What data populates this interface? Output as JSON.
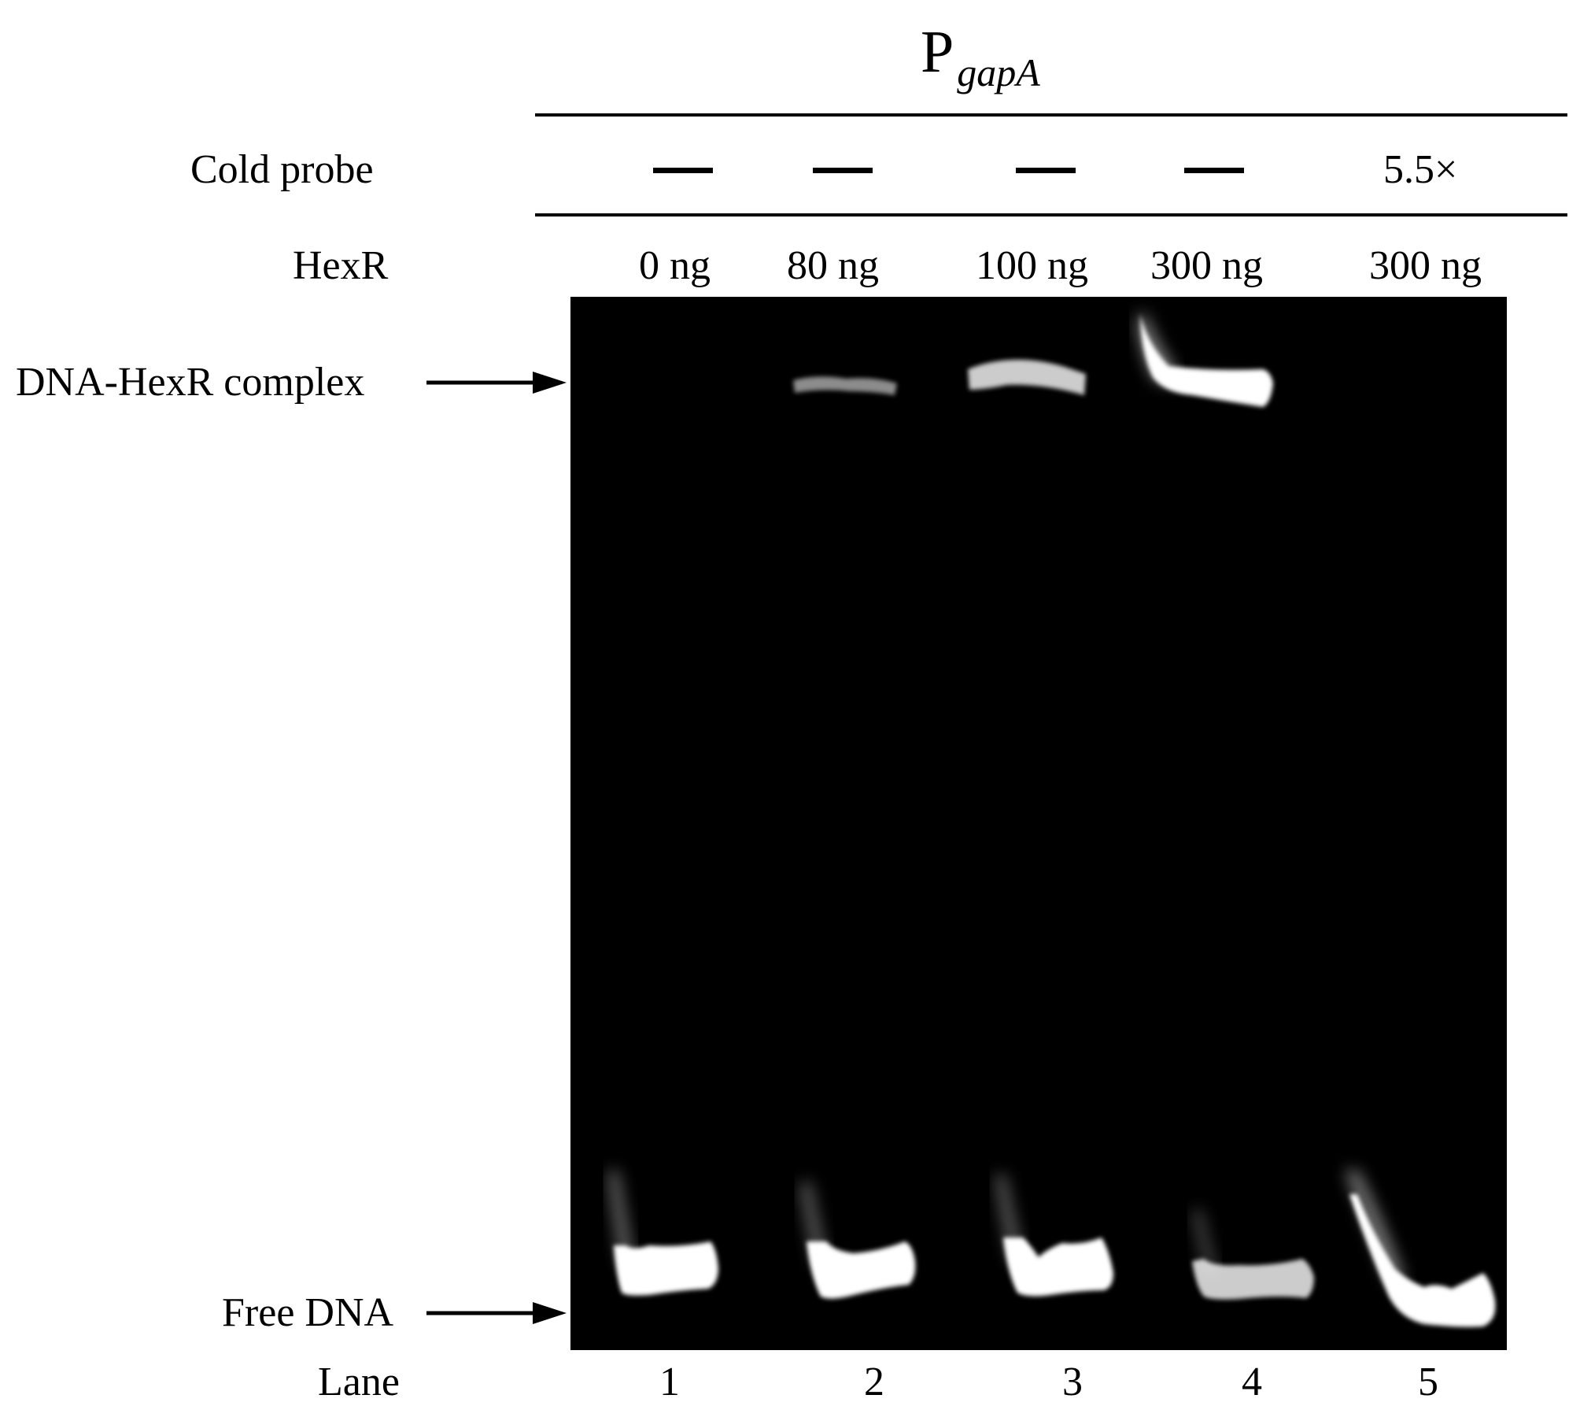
{
  "probe": {
    "main": "P",
    "subscript": "gapA"
  },
  "rows": {
    "cold_probe_label": "Cold probe",
    "hexr_label": "HexR",
    "lane_label": "Lane"
  },
  "lanes": [
    {
      "number": "1",
      "cold_probe": "",
      "hexr": "0 ng",
      "complex_band": 0.0,
      "free_band": 1.0
    },
    {
      "number": "2",
      "cold_probe": "",
      "hexr": "80 ng",
      "complex_band": 0.55,
      "free_band": 1.0
    },
    {
      "number": "3",
      "cold_probe": "",
      "hexr": "100 ng",
      "complex_band": 0.8,
      "free_band": 1.0
    },
    {
      "number": "4",
      "cold_probe": "",
      "hexr": "300 ng",
      "complex_band": 1.0,
      "free_band": 0.8
    },
    {
      "number": "5",
      "cold_probe": "5.5×",
      "hexr": "300 ng",
      "complex_band": 0.0,
      "free_band": 1.0
    }
  ],
  "markers": {
    "complex": "DNA-HexR  complex",
    "free": "Free DNA"
  },
  "colors": {
    "gel_background": "#000000",
    "band": "#ffffff"
  }
}
